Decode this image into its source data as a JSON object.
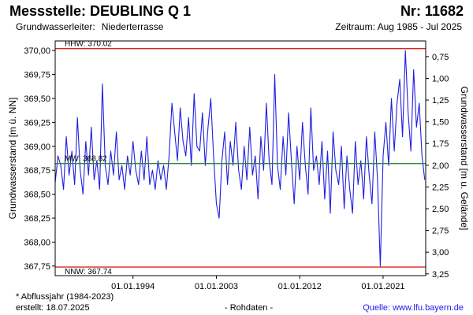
{
  "header": {
    "title": "Messstelle: DEUBLING Q 1",
    "station_nr": "Nr: 11682",
    "aquifer_label": "Grundwasserleiter:",
    "aquifer_value": "Niederterrasse",
    "period": "Zeitraum: Aug 1985 - Jul 2025"
  },
  "footer": {
    "note": "* Abflussjahr (1984-2023)",
    "created": "erstellt:  18.07.2025",
    "raw_data": "- Rohdaten -",
    "source": "Quelle: www.lfu.bayern.de"
  },
  "colors": {
    "series": "#1f1fe0",
    "limit_lines": "#e02020",
    "mean_line": "#2e8b2e",
    "frame": "#000000"
  },
  "chart_data": {
    "type": "line",
    "title": "",
    "ylabel": "Grundwasserstand [m ü. NN]",
    "y2label": "Grundwasserstand [m u. Gelände]",
    "ylim": [
      367.65,
      370.1
    ],
    "y2lim": [
      0.57,
      3.27
    ],
    "yticks": [
      367.75,
      368.0,
      368.25,
      368.5,
      368.75,
      369.0,
      369.25,
      369.5,
      369.75,
      370.0
    ],
    "ytick_labels": [
      "367,75",
      "368,00",
      "368,25",
      "368,50",
      "368,75",
      "369,00",
      "369,25",
      "369,50",
      "369,75",
      "370,00"
    ],
    "y2ticks": [
      0.75,
      1.0,
      1.25,
      1.5,
      1.75,
      2.0,
      2.25,
      2.5,
      2.75,
      3.0,
      3.25
    ],
    "y2tick_labels": [
      "0,75",
      "1,00",
      "1,25",
      "1,50",
      "1,75",
      "2,00",
      "2,25",
      "2,50",
      "2,75",
      "3,00",
      "3,25"
    ],
    "xlim": [
      1985.6,
      2025.6
    ],
    "xticks": [
      1994.0,
      2003.0,
      2012.0,
      2021.0
    ],
    "xtick_labels": [
      "01.01.1994",
      "01.01.2003",
      "01.01.2012",
      "01.01.2021"
    ],
    "reference_lines": [
      {
        "name": "HHW",
        "label": "HHW: 370.02",
        "value": 370.02,
        "color": "#e02020"
      },
      {
        "name": "MW",
        "label": "MW: 368.82",
        "value": 368.82,
        "color": "#2e8b2e"
      },
      {
        "name": "NNW",
        "label": "NNW: 367.74",
        "value": 367.74,
        "color": "#e02020"
      }
    ],
    "series": [
      {
        "name": "Grundwasserstand",
        "x": [
          1985.6,
          1985.9,
          1986.2,
          1986.5,
          1986.8,
          1987.1,
          1987.4,
          1987.7,
          1988.0,
          1988.3,
          1988.6,
          1988.9,
          1989.2,
          1989.5,
          1989.8,
          1990.1,
          1990.4,
          1990.7,
          1991.0,
          1991.3,
          1991.6,
          1991.9,
          1992.2,
          1992.5,
          1992.8,
          1993.1,
          1993.4,
          1993.7,
          1994.0,
          1994.3,
          1994.6,
          1994.9,
          1995.2,
          1995.5,
          1995.8,
          1996.1,
          1996.4,
          1996.7,
          1997.0,
          1997.3,
          1997.6,
          1997.9,
          1998.2,
          1998.5,
          1998.8,
          1999.1,
          1999.4,
          1999.7,
          2000.0,
          2000.3,
          2000.6,
          2000.9,
          2001.2,
          2001.5,
          2001.8,
          2002.1,
          2002.4,
          2002.7,
          2003.0,
          2003.3,
          2003.6,
          2003.9,
          2004.2,
          2004.5,
          2004.8,
          2005.1,
          2005.4,
          2005.7,
          2006.0,
          2006.3,
          2006.6,
          2006.9,
          2007.2,
          2007.5,
          2007.8,
          2008.1,
          2008.4,
          2008.7,
          2009.0,
          2009.3,
          2009.6,
          2009.9,
          2010.2,
          2010.5,
          2010.8,
          2011.1,
          2011.4,
          2011.7,
          2012.0,
          2012.3,
          2012.6,
          2012.9,
          2013.2,
          2013.5,
          2013.8,
          2014.1,
          2014.4,
          2014.7,
          2015.0,
          2015.3,
          2015.6,
          2015.9,
          2016.2,
          2016.5,
          2016.8,
          2017.1,
          2017.4,
          2017.7,
          2018.0,
          2018.3,
          2018.6,
          2018.9,
          2019.2,
          2019.5,
          2019.8,
          2020.1,
          2020.4,
          2020.7,
          2021.0,
          2021.3,
          2021.6,
          2021.9,
          2022.2,
          2022.5,
          2022.8,
          2023.1,
          2023.4,
          2023.7,
          2024.0,
          2024.3,
          2024.6,
          2024.9,
          2025.2,
          2025.5
        ],
        "values": [
          368.62,
          368.9,
          368.8,
          368.55,
          369.1,
          368.7,
          368.95,
          368.6,
          369.3,
          368.75,
          368.5,
          369.05,
          368.7,
          369.2,
          368.65,
          368.85,
          368.55,
          369.65,
          368.8,
          368.6,
          368.95,
          368.7,
          369.15,
          368.65,
          368.8,
          368.55,
          368.9,
          368.7,
          369.05,
          368.75,
          368.6,
          368.95,
          368.65,
          369.1,
          368.6,
          368.75,
          368.55,
          368.85,
          368.65,
          368.8,
          368.55,
          368.9,
          369.45,
          369.15,
          368.85,
          369.4,
          369.05,
          368.9,
          369.3,
          368.8,
          369.55,
          369.0,
          368.95,
          369.35,
          368.8,
          369.2,
          369.5,
          368.9,
          368.4,
          368.25,
          368.85,
          369.15,
          368.6,
          369.05,
          368.8,
          369.25,
          368.75,
          368.55,
          369.0,
          368.65,
          369.2,
          368.7,
          368.9,
          368.45,
          369.1,
          368.75,
          369.45,
          368.85,
          368.6,
          369.75,
          368.8,
          368.55,
          369.1,
          368.7,
          369.35,
          368.85,
          368.4,
          369.0,
          368.65,
          369.25,
          368.8,
          368.5,
          369.4,
          368.75,
          368.9,
          368.6,
          369.05,
          368.45,
          368.95,
          368.3,
          369.15,
          368.75,
          368.6,
          369.0,
          368.35,
          368.9,
          368.55,
          368.3,
          369.05,
          368.6,
          368.85,
          368.45,
          369.1,
          368.7,
          368.4,
          369.15,
          368.65,
          367.75,
          368.9,
          369.25,
          368.8,
          369.5,
          368.95,
          369.45,
          369.7,
          369.1,
          370.0,
          369.35,
          368.95,
          369.8,
          369.2,
          369.45,
          368.9,
          368.65
        ]
      }
    ]
  }
}
